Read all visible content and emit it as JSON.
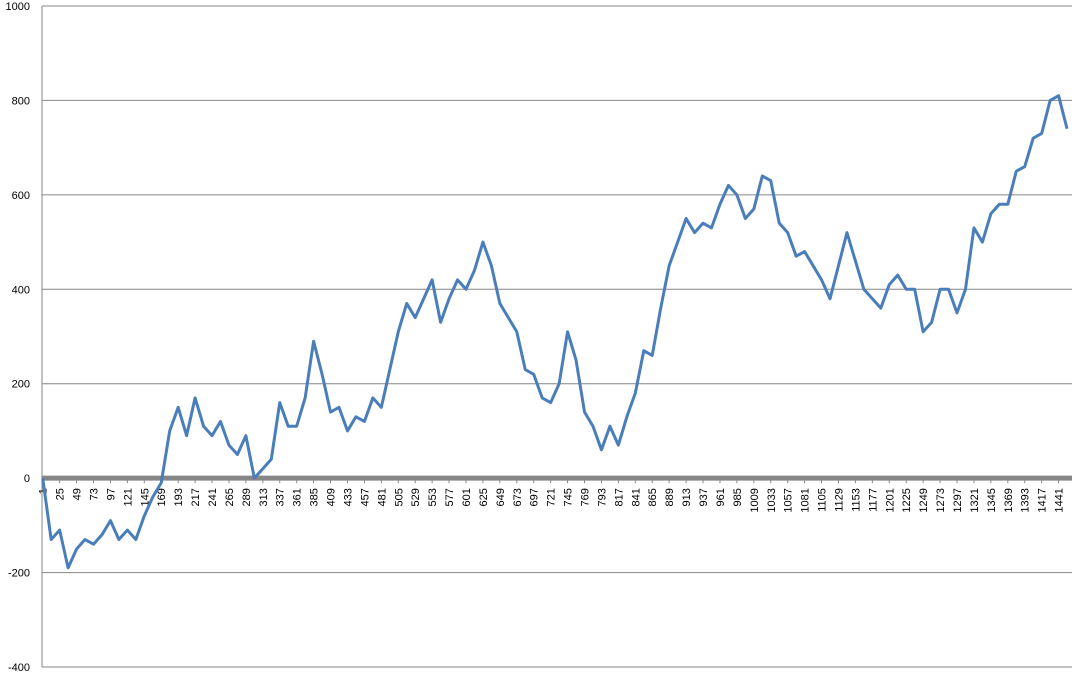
{
  "chart_data": {
    "type": "line",
    "x": [
      1,
      13,
      25,
      37,
      49,
      61,
      73,
      85,
      97,
      109,
      121,
      133,
      145,
      157,
      169,
      181,
      193,
      205,
      217,
      229,
      241,
      253,
      265,
      277,
      289,
      301,
      313,
      325,
      337,
      349,
      361,
      373,
      385,
      397,
      409,
      421,
      433,
      445,
      457,
      469,
      481,
      493,
      505,
      517,
      529,
      541,
      553,
      565,
      577,
      589,
      601,
      613,
      625,
      637,
      649,
      661,
      673,
      685,
      697,
      709,
      721,
      733,
      745,
      757,
      769,
      781,
      793,
      805,
      817,
      829,
      841,
      853,
      865,
      877,
      889,
      901,
      913,
      925,
      937,
      949,
      961,
      973,
      985,
      997,
      1009,
      1021,
      1033,
      1045,
      1057,
      1069,
      1081,
      1093,
      1105,
      1117,
      1129,
      1141,
      1153,
      1165,
      1177,
      1189,
      1201,
      1213,
      1225,
      1237,
      1249,
      1261,
      1273,
      1285,
      1297,
      1309,
      1321,
      1333,
      1345,
      1357,
      1369,
      1381,
      1393,
      1405,
      1417,
      1429,
      1441,
      1453
    ],
    "series": [
      {
        "color": "#4a7ebb",
        "values": [
          0,
          -130,
          -110,
          -190,
          -150,
          -130,
          -140,
          -120,
          -90,
          -130,
          -110,
          -130,
          -80,
          -40,
          -10,
          100,
          150,
          90,
          170,
          110,
          90,
          120,
          70,
          50,
          90,
          0,
          20,
          40,
          160,
          110,
          110,
          170,
          290,
          220,
          140,
          150,
          100,
          130,
          120,
          170,
          150,
          230,
          310,
          370,
          340,
          380,
          420,
          330,
          380,
          420,
          400,
          440,
          500,
          450,
          370,
          340,
          310,
          230,
          220,
          170,
          160,
          200,
          310,
          250,
          140,
          110,
          60,
          110,
          70,
          130,
          180,
          270,
          260,
          360,
          450,
          500,
          550,
          520,
          540,
          530,
          580,
          620,
          600,
          550,
          570,
          640,
          630,
          540,
          520,
          470,
          480,
          450,
          420,
          380,
          450,
          520,
          460,
          400,
          380,
          360,
          410,
          430,
          400,
          400,
          310,
          330,
          400,
          400,
          350,
          400,
          530,
          500,
          560,
          580,
          580,
          650,
          660,
          720,
          730,
          800,
          810,
          740
        ]
      }
    ],
    "xlim": [
      0,
      1460
    ],
    "xticks": [
      1,
      25,
      49,
      73,
      97,
      121,
      145,
      169,
      193,
      217,
      241,
      265,
      289,
      313,
      337,
      361,
      385,
      409,
      433,
      457,
      481,
      505,
      529,
      553,
      577,
      601,
      625,
      649,
      673,
      697,
      721,
      745,
      769,
      793,
      817,
      841,
      865,
      889,
      913,
      937,
      961,
      985,
      1009,
      1033,
      1057,
      1081,
      1105,
      1129,
      1153,
      1177,
      1201,
      1225,
      1249,
      1273,
      1297,
      1321,
      1345,
      1369,
      1393,
      1417,
      1441
    ],
    "ylim": [
      -400,
      1000
    ],
    "yticks": [
      -400,
      -200,
      0,
      200,
      400,
      600,
      800,
      1000
    ],
    "grid": true
  }
}
